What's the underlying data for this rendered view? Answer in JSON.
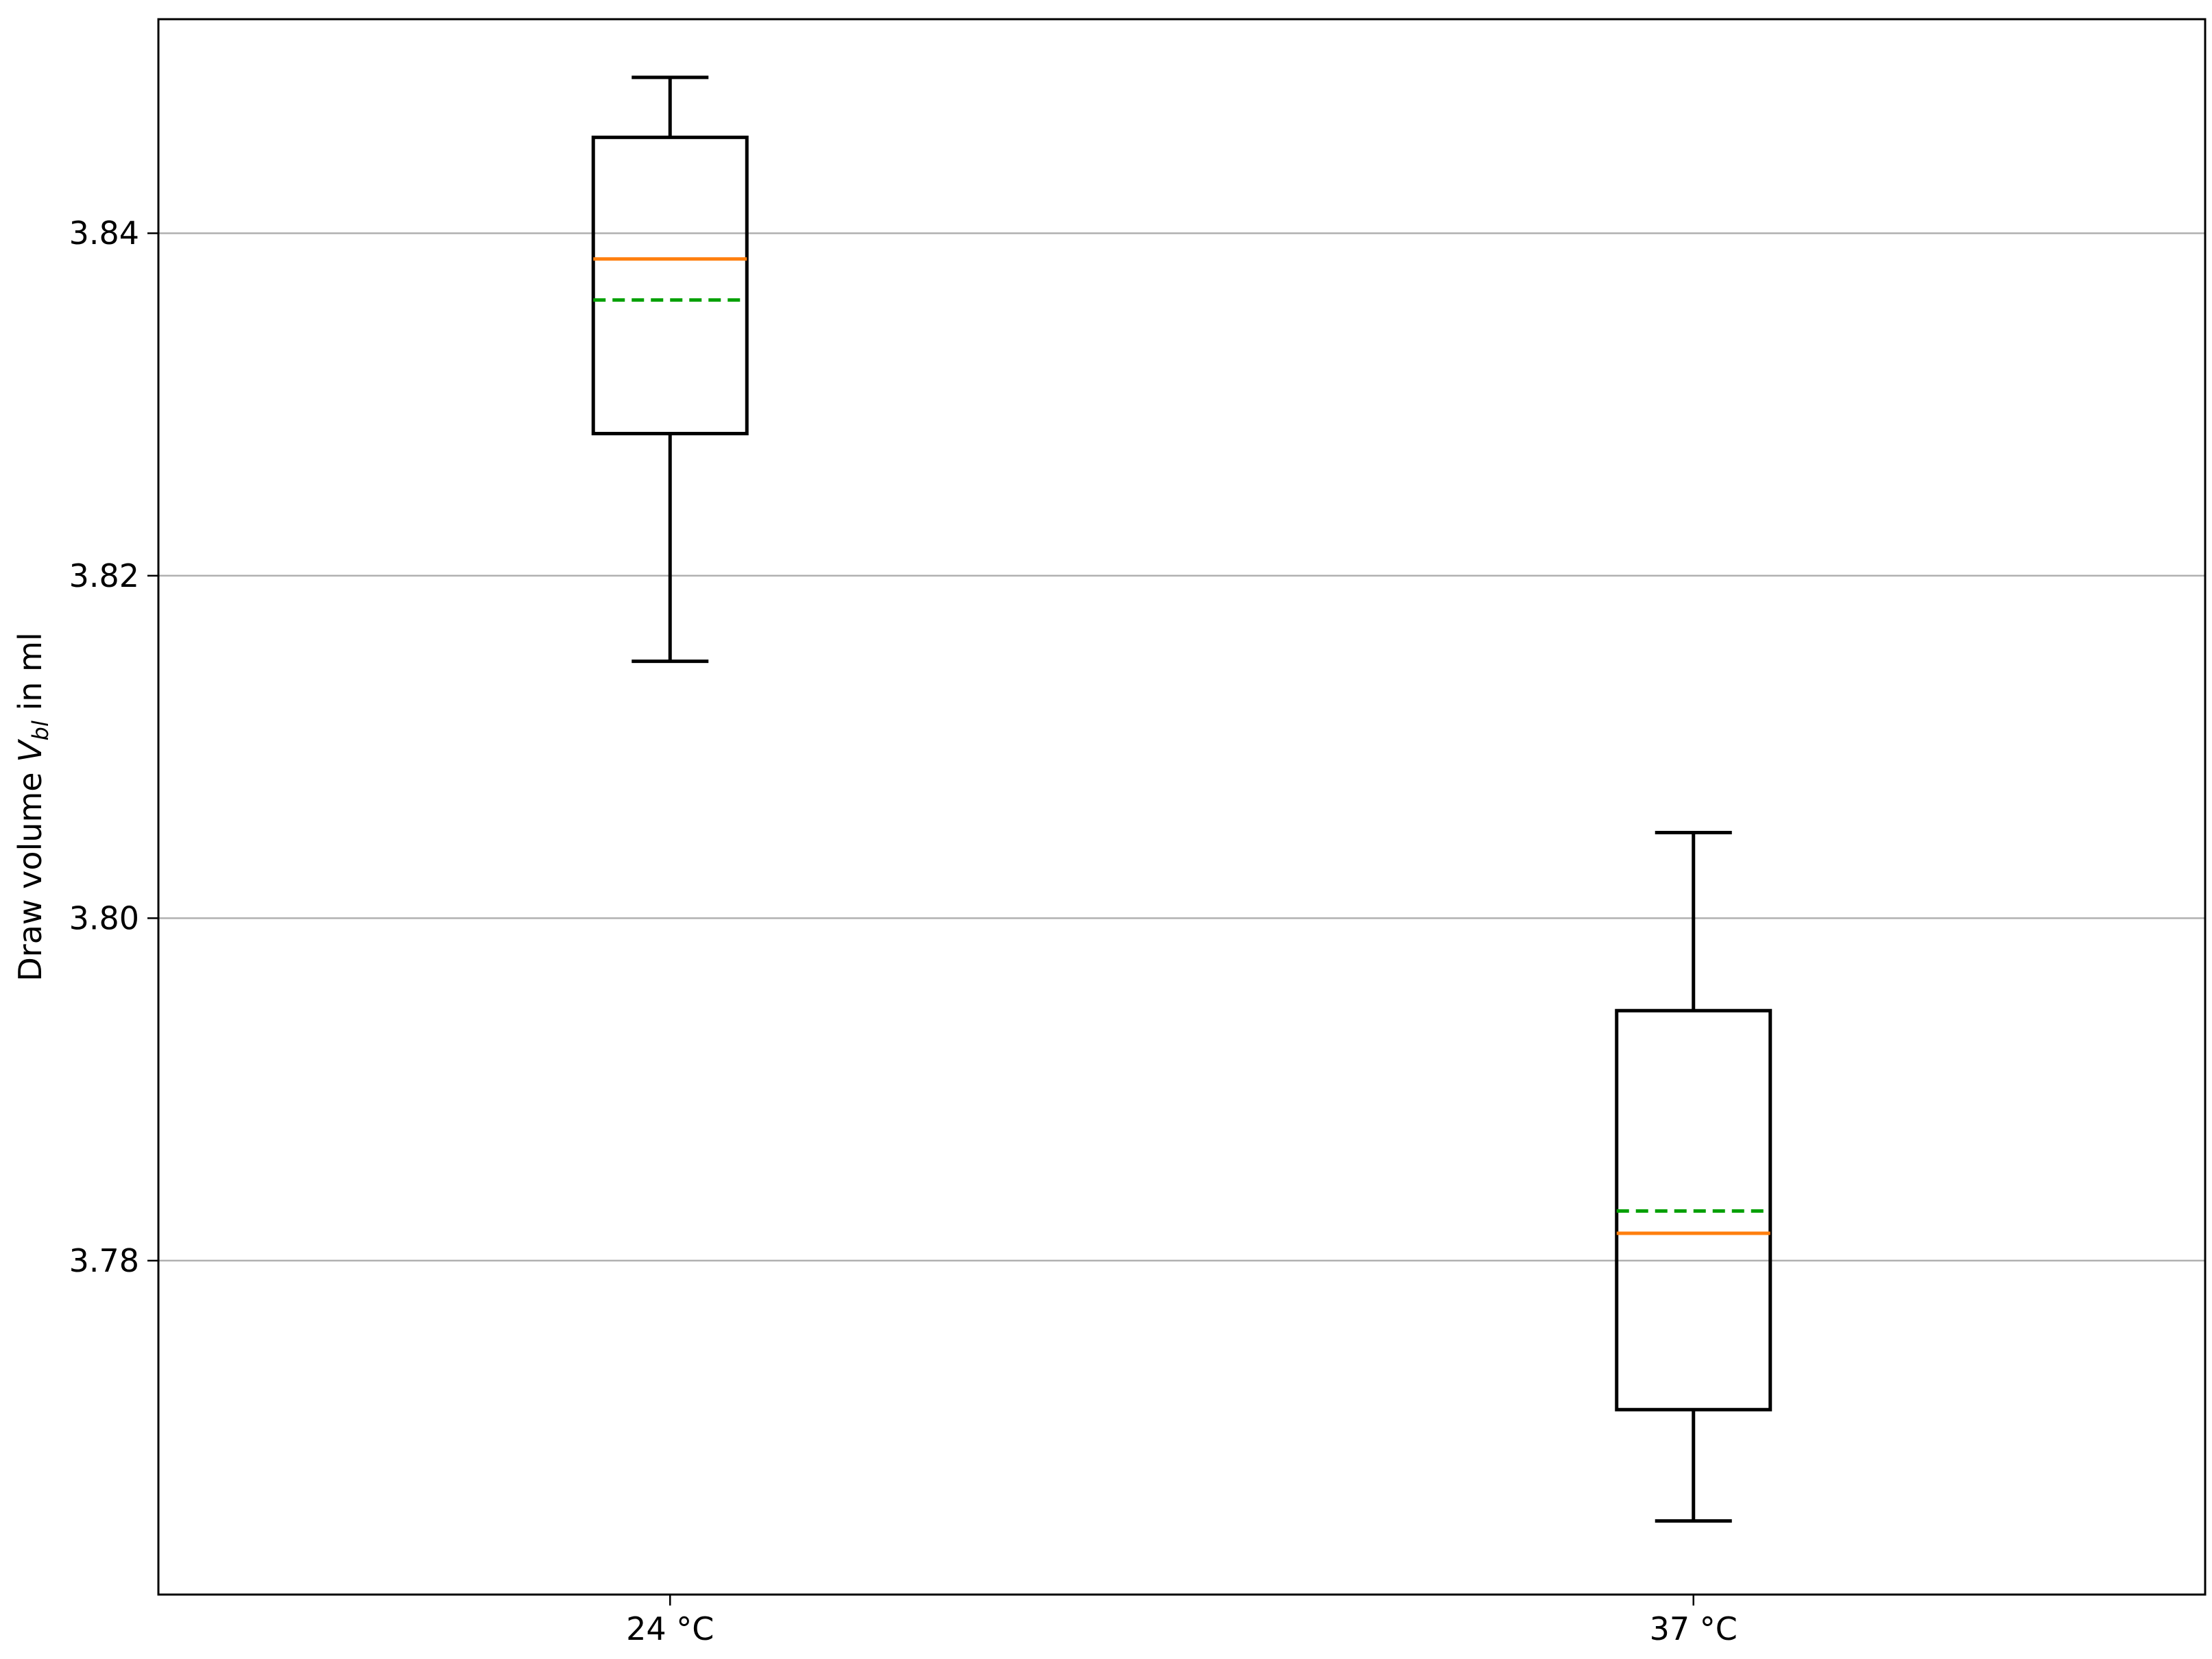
{
  "chart_data": {
    "type": "box",
    "title": "",
    "xlabel": "",
    "ylabel": {
      "prefix": "Draw volume ",
      "symbol": "V",
      "subscript": "bl",
      "suffix": " in ml"
    },
    "ylim": [
      3.7605,
      3.8525
    ],
    "yticks": [
      3.78,
      3.8,
      3.82,
      3.84
    ],
    "grid": {
      "y": true,
      "x": false
    },
    "categories": [
      "24 °C",
      "37 °C"
    ],
    "boxes": [
      {
        "label": "24 °C",
        "whisker_low": 3.815,
        "q1": 3.8283,
        "median": 3.8385,
        "mean": 3.8361,
        "q3": 3.8456,
        "whisker_high": 3.8491
      },
      {
        "label": "37 °C",
        "whisker_low": 3.7648,
        "q1": 3.7713,
        "median": 3.7816,
        "mean": 3.7829,
        "q3": 3.7946,
        "whisker_high": 3.805
      }
    ],
    "colors": {
      "box": "#000000",
      "median": "#ff7f0e",
      "mean": "#00a000",
      "grid": "#b0b0b0"
    }
  }
}
